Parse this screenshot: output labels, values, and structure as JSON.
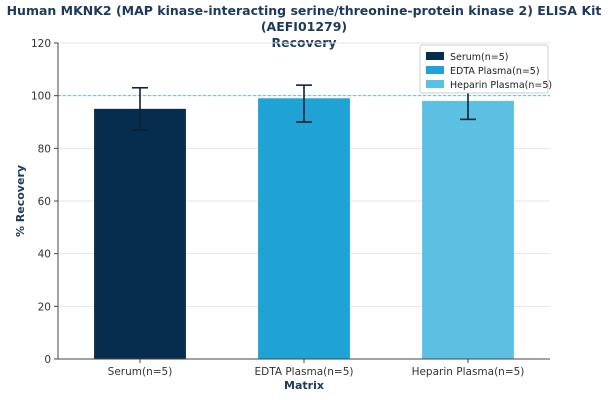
{
  "title_line1": "Human MKNK2 (MAP kinase-interacting serine/threonine-protein kinase 2) ELISA Kit (AEFI01279)",
  "title_line2": "Recovery",
  "chart_data": {
    "type": "bar",
    "categories": [
      "Serum(n=5)",
      "EDTA Plasma(n=5)",
      "Heparin Plasma(n=5)"
    ],
    "values": [
      95,
      99,
      98
    ],
    "error_low": [
      87,
      90,
      91
    ],
    "error_high": [
      103,
      104,
      102
    ],
    "colors": [
      "#062d4d",
      "#1fa3d4",
      "#5bc0e1"
    ],
    "reference_line": 100,
    "xlabel": "Matrix",
    "ylabel": "% Recovery",
    "ylim": [
      0,
      120
    ],
    "yticks": [
      0,
      20,
      40,
      60,
      80,
      100,
      120
    ],
    "grid": true,
    "legend": {
      "position": "top-right",
      "entries": [
        "Serum(n=5)",
        "EDTA Plasma(n=5)",
        "Heparin Plasma(n=5)"
      ]
    }
  }
}
